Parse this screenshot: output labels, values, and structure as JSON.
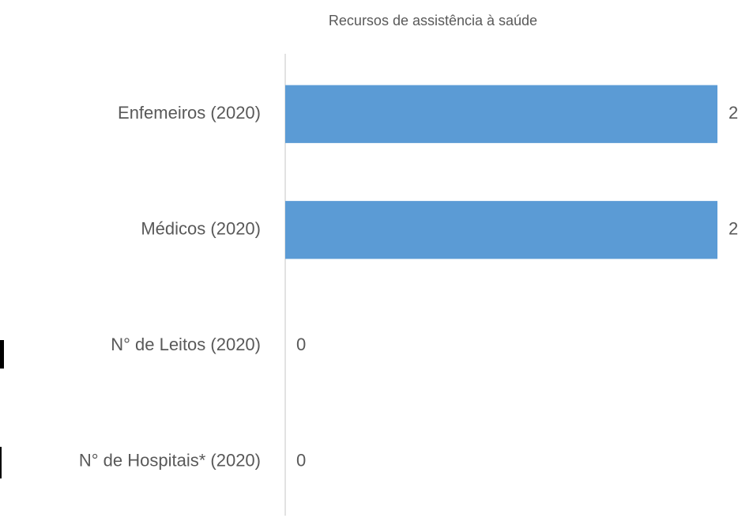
{
  "chart_data": {
    "type": "barh",
    "title": "Recursos de assistência à saúde",
    "categories": [
      "Enfemeiros (2020)",
      "Médicos (2020)",
      "N° de Leitos (2020)",
      "N° de Hospitais* (2020)"
    ],
    "values": [
      2,
      2,
      0,
      0
    ],
    "color": "#5b9bd5",
    "xlim": [
      0,
      2
    ],
    "data_labels": true
  }
}
